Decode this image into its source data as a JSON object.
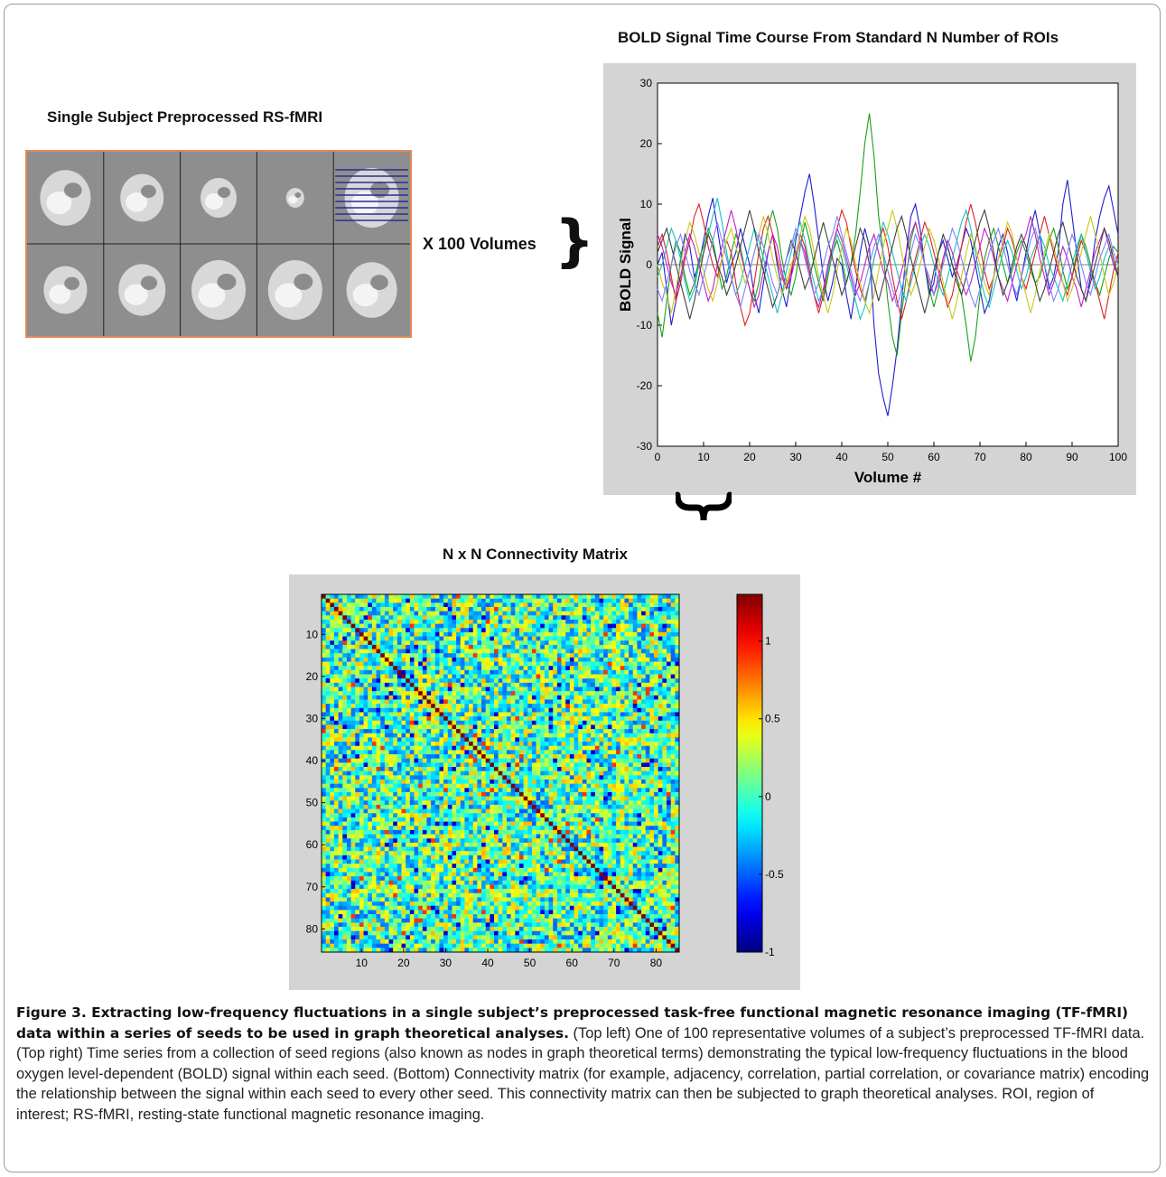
{
  "figure": {
    "brain_title": "Single Subject Preprocessed RS-fMRI",
    "volumes_label": "X 100 Volumes",
    "timeseries_title": "BOLD Signal Time Course From Standard N Number of ROIs",
    "matrix_title": "N x N Connectivity Matrix"
  },
  "chart_data": [
    {
      "type": "line",
      "title": "BOLD Signal Time Course From Standard N Number of ROIs",
      "xlabel": "Volume #",
      "ylabel": "BOLD Signal",
      "xlim": [
        0,
        100
      ],
      "ylim": [
        -30,
        30
      ],
      "xticks": [
        0,
        10,
        20,
        30,
        40,
        50,
        60,
        70,
        80,
        90,
        100
      ],
      "yticks": [
        -30,
        -20,
        -10,
        0,
        10,
        20,
        30
      ],
      "grid": false,
      "colors": [
        "#1f1fd0",
        "#1aa01a",
        "#e02020",
        "#18c0c0",
        "#c020c0",
        "#c8c818",
        "#404040",
        "#8080ff",
        "#ff8040",
        "#40a040"
      ],
      "series": [
        {
          "values": [
            0,
            2,
            -4,
            -10,
            -6,
            1,
            5,
            3,
            -2,
            0,
            4,
            8,
            11,
            6,
            1,
            -3,
            0,
            2,
            6,
            3,
            0,
            -5,
            -8,
            -3,
            2,
            5,
            0,
            -4,
            -7,
            -2,
            4,
            8,
            12,
            15,
            10,
            4,
            -2,
            -6,
            -3,
            1,
            0,
            -5,
            -9,
            -4,
            2,
            6,
            3,
            -10,
            -18,
            -22,
            -25,
            -20,
            -14,
            -6,
            2,
            8,
            10,
            6,
            0,
            -5,
            -3,
            2,
            4,
            1,
            -2,
            0,
            3,
            6,
            4,
            0,
            -4,
            -8,
            -6,
            -2,
            3,
            5,
            2,
            -3,
            -6,
            -2,
            2,
            6,
            9,
            5,
            0,
            -4,
            -2,
            2,
            10,
            14,
            8,
            2,
            -4,
            -6,
            -2,
            4,
            8,
            11,
            13,
            9,
            5
          ]
        },
        {
          "values": [
            -8,
            -12,
            -6,
            0,
            4,
            2,
            -2,
            -5,
            -3,
            1,
            3,
            6,
            4,
            0,
            -4,
            -2,
            2,
            5,
            3,
            -1,
            -4,
            -6,
            -3,
            2,
            6,
            9,
            6,
            1,
            -3,
            -5,
            -2,
            3,
            7,
            4,
            0,
            -3,
            -6,
            -2,
            2,
            4,
            1,
            -3,
            0,
            5,
            12,
            20,
            25,
            18,
            8,
            2,
            -6,
            -12,
            -15,
            -8,
            -2,
            4,
            7,
            4,
            0,
            -4,
            -7,
            -4,
            1,
            3,
            0,
            -2,
            -5,
            -10,
            -16,
            -12,
            -5,
            1,
            4,
            6,
            3,
            0,
            -3,
            -1,
            2,
            4,
            2,
            -1,
            -3,
            -2,
            1,
            4,
            6,
            3,
            -1,
            -4,
            -2,
            2,
            5,
            3,
            0,
            -3,
            -5,
            -2,
            1,
            3,
            2
          ]
        },
        {
          "values": [
            3,
            5,
            2,
            -2,
            -6,
            -3,
            1,
            4,
            8,
            10,
            7,
            3,
            0,
            -2,
            1,
            4,
            2,
            -3,
            -7,
            -10,
            -8,
            -3,
            2,
            6,
            8,
            5,
            1,
            -2,
            -4,
            -1,
            2,
            5,
            3,
            -1,
            -5,
            -8,
            -5,
            -1,
            3,
            6,
            9,
            7,
            3,
            -1,
            -4,
            -6,
            -3,
            1,
            4,
            6,
            3,
            -2,
            -6,
            -9,
            -6,
            -2,
            1,
            4,
            7,
            5,
            2,
            -1,
            -4,
            -7,
            -5,
            -1,
            3,
            7,
            10,
            7,
            3,
            -1,
            -4,
            -2,
            1,
            3,
            6,
            4,
            1,
            -2,
            -4,
            -1,
            2,
            5,
            8,
            5,
            2,
            -1,
            -3,
            -5,
            -2,
            1,
            4,
            2,
            -1,
            -3,
            -6,
            -9,
            -5,
            -1,
            2
          ]
        },
        {
          "values": [
            -2,
            0,
            3,
            6,
            4,
            1,
            -3,
            -6,
            -4,
            0,
            2,
            5,
            8,
            11,
            7,
            2,
            -2,
            -5,
            -3,
            0,
            3,
            6,
            4,
            1,
            -2,
            -5,
            -8,
            -5,
            -1,
            2,
            5,
            7,
            4,
            0,
            -3,
            -6,
            -4,
            -1,
            2,
            5,
            3,
            0,
            -3,
            -6,
            -9,
            -7,
            -3,
            1,
            4,
            7,
            5,
            2,
            -1,
            -4,
            -6,
            -3,
            0,
            3,
            5,
            3,
            0,
            -3,
            -5,
            -2,
            1,
            4,
            7,
            9,
            6,
            2,
            -2,
            -5,
            -7,
            -4,
            -1,
            2,
            4,
            2,
            -1,
            -4,
            -2,
            1,
            3,
            5,
            3,
            0,
            -2,
            -4,
            -6,
            -3,
            0,
            3,
            5,
            2,
            -1,
            -4,
            -2,
            1,
            3,
            0,
            -2
          ]
        },
        {
          "values": [
            5,
            3,
            0,
            -3,
            -5,
            -2,
            2,
            5,
            3,
            0,
            -3,
            -6,
            -4,
            0,
            3,
            6,
            9,
            6,
            2,
            -1,
            -4,
            -7,
            -5,
            -1,
            2,
            5,
            3,
            -1,
            -4,
            -2,
            1,
            4,
            2,
            -2,
            -5,
            -7,
            -4,
            0,
            3,
            6,
            4,
            1,
            -2,
            -5,
            -3,
            0,
            3,
            5,
            2,
            -1,
            -3,
            -6,
            -4,
            -1,
            2,
            5,
            7,
            4,
            0,
            -3,
            -5,
            -2,
            1,
            4,
            2,
            -1,
            -3,
            -5,
            -3,
            0,
            3,
            6,
            4,
            1,
            -2,
            -4,
            -6,
            -3,
            0,
            3,
            5,
            8,
            5,
            1,
            -2,
            -5,
            -3,
            0,
            3,
            1,
            -2,
            -4,
            -7,
            -4,
            -1,
            2,
            4,
            6,
            3,
            0,
            -2
          ]
        },
        {
          "values": [
            0,
            -3,
            -5,
            -8,
            -4,
            0,
            4,
            7,
            5,
            2,
            -1,
            -4,
            -6,
            -3,
            1,
            4,
            6,
            3,
            0,
            -3,
            -1,
            2,
            5,
            8,
            5,
            1,
            -2,
            -5,
            -3,
            0,
            2,
            5,
            8,
            6,
            2,
            -2,
            -5,
            -8,
            -5,
            -1,
            3,
            6,
            4,
            0,
            -3,
            -6,
            -8,
            -5,
            -1,
            3,
            6,
            9,
            6,
            2,
            -2,
            -5,
            -3,
            0,
            3,
            6,
            4,
            1,
            -3,
            -6,
            -9,
            -6,
            -2,
            2,
            5,
            3,
            0,
            -3,
            -5,
            -2,
            1,
            4,
            7,
            5,
            1,
            -2,
            -5,
            -8,
            -5,
            -1,
            2,
            5,
            3,
            0,
            -3,
            -6,
            -4,
            -1,
            2,
            5,
            8,
            5,
            2,
            -2,
            -5,
            -3,
            0
          ]
        },
        {
          "values": [
            2,
            4,
            6,
            3,
            0,
            -3,
            -6,
            -9,
            -6,
            -2,
            2,
            5,
            3,
            0,
            -2,
            -5,
            -3,
            0,
            3,
            6,
            9,
            6,
            2,
            -1,
            -4,
            -7,
            -5,
            -2,
            1,
            4,
            2,
            -1,
            -4,
            -2,
            1,
            4,
            7,
            4,
            1,
            -2,
            -5,
            -3,
            0,
            3,
            6,
            4,
            0,
            -3,
            -6,
            -3,
            0,
            3,
            6,
            8,
            5,
            1,
            -2,
            -5,
            -8,
            -5,
            -1,
            2,
            5,
            3,
            0,
            -3,
            -5,
            -2,
            1,
            4,
            7,
            9,
            6,
            2,
            -2,
            -5,
            -3,
            0,
            3,
            5,
            3,
            0,
            -3,
            -6,
            -4,
            -1,
            2,
            5,
            7,
            4,
            1,
            -2,
            -4,
            -6,
            -3,
            0,
            3,
            6,
            4,
            1,
            -2
          ]
        },
        {
          "values": [
            -4,
            -6,
            -3,
            0,
            3,
            5,
            2,
            -1,
            -3,
            -5,
            -2,
            1,
            4,
            7,
            4,
            1,
            -2,
            -5,
            -7,
            -4,
            -1,
            2,
            5,
            3,
            0,
            -3,
            -5,
            -2,
            1,
            3,
            6,
            4,
            1,
            -2,
            -5,
            -3,
            0,
            3,
            5,
            8,
            5,
            2,
            -1,
            -4,
            -6,
            -3,
            0,
            3,
            5,
            2,
            -1,
            -4,
            -7,
            -4,
            -1,
            2,
            5,
            3,
            0,
            -2,
            -5,
            -3,
            0,
            3,
            6,
            4,
            1,
            -2,
            -5,
            -7,
            -4,
            -1,
            2,
            4,
            6,
            3,
            0,
            -3,
            -5,
            -2,
            1,
            4,
            6,
            3,
            0,
            -3,
            -6,
            -4,
            -1,
            2,
            5,
            3,
            0,
            -3,
            -5,
            -2,
            1,
            3,
            5,
            2,
            0
          ]
        }
      ]
    },
    {
      "type": "heatmap",
      "title": "N x N Connectivity Matrix",
      "size": 85,
      "xticks": [
        10,
        20,
        30,
        40,
        50,
        60,
        70,
        80
      ],
      "yticks": [
        10,
        20,
        30,
        40,
        50,
        60,
        70,
        80
      ],
      "colorbar": {
        "min": -1,
        "max": 1.3,
        "ticks": [
          -1,
          -0.5,
          0,
          0.5,
          1
        ],
        "tick_labels": [
          "-1",
          "-0.5",
          "0",
          "0.5",
          "1"
        ]
      },
      "colormap": "jet",
      "diagonal_value": 1.3
    }
  ],
  "caption": {
    "bold": "Figure 3. Extracting low-frequency fluctuations in a single subject’s preprocessed task-free functional magnetic resonance imaging (TF-fMRI) data within a series of seeds to be used in graph theoretical analyses.",
    "rest": " (Top left) One of 100 representative volumes of a subject’s preprocessed TF-fMRI data. (Top right) Time series from a collection of seed regions (also known as nodes in graph theoretical terms) demonstrating the typical low-frequency fluctuations in the blood oxygen level-dependent (BOLD) signal within each seed. (Bottom) Connectivity matrix (for example, adjacency, correlation, partial correlation, or covariance matrix) encoding the relationship between the signal within each seed to every other seed. This connectivity matrix can then be subjected to graph theoretical analyses. ROI, region of interest; RS-fMRI, resting-state functional magnetic resonance imaging."
  }
}
